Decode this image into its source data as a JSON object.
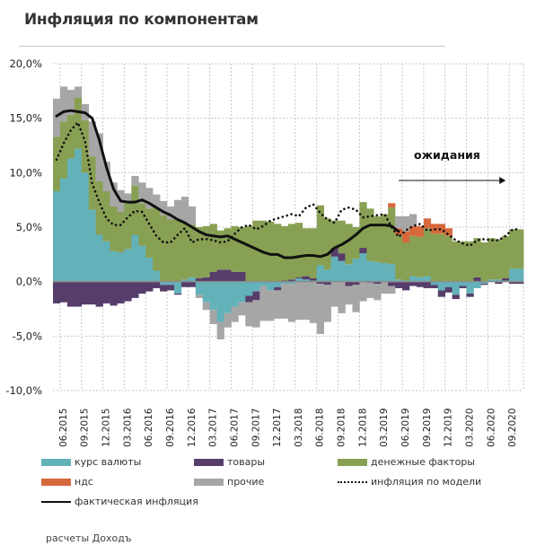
{
  "title": "Инфляция по компонентам",
  "source": "расчеты Доходъ",
  "chart_data": {
    "type": "bar",
    "stacked": true,
    "title": "Инфляция по компонентам",
    "xlabel": "",
    "ylabel": "",
    "ylim": [
      -10,
      20
    ],
    "yticks": [
      20,
      15,
      10,
      5,
      0,
      -5,
      -10
    ],
    "ytick_labels": [
      "20,0%",
      "15,0%",
      "10,0%",
      "5,0%",
      "0,0%",
      "-5,0%",
      "-10,0%"
    ],
    "grid": true,
    "legend_position": "bottom",
    "annotation": {
      "text": "ожидания",
      "arrow": "right",
      "from_month_index": 48,
      "to_month_index": 63
    },
    "xtick_labels": [
      "06.2015",
      "09.2015",
      "12.2015",
      "03.2016",
      "06.2016",
      "09.2016",
      "12.2016",
      "03.2017",
      "06.2017",
      "09.2017",
      "12.2017",
      "03.2018",
      "06.2018",
      "09.2018",
      "12.2018",
      "03.2019",
      "06.2019",
      "09.2019",
      "12.2019",
      "03.2020",
      "06.2020",
      "09.2020"
    ],
    "xtick_month_index": [
      1,
      4,
      7,
      10,
      13,
      16,
      19,
      22,
      25,
      28,
      31,
      34,
      37,
      40,
      43,
      46,
      49,
      52,
      55,
      58,
      61,
      64
    ],
    "months": [
      "05.2015",
      "06.2015",
      "07.2015",
      "08.2015",
      "09.2015",
      "10.2015",
      "11.2015",
      "12.2015",
      "01.2016",
      "02.2016",
      "03.2016",
      "04.2016",
      "05.2016",
      "06.2016",
      "07.2016",
      "08.2016",
      "09.2016",
      "10.2016",
      "11.2016",
      "12.2016",
      "01.2017",
      "02.2017",
      "03.2017",
      "04.2017",
      "05.2017",
      "06.2017",
      "07.2017",
      "08.2017",
      "09.2017",
      "10.2017",
      "11.2017",
      "12.2017",
      "01.2018",
      "02.2018",
      "03.2018",
      "04.2018",
      "05.2018",
      "06.2018",
      "07.2018",
      "08.2018",
      "09.2018",
      "10.2018",
      "11.2018",
      "12.2018",
      "01.2019",
      "02.2019",
      "03.2019",
      "04.2019",
      "05.2019",
      "06.2019",
      "07.2019",
      "08.2019",
      "09.2019",
      "10.2019",
      "11.2019",
      "12.2019",
      "01.2020",
      "02.2020",
      "03.2020",
      "04.2020",
      "05.2020",
      "06.2020",
      "07.2020",
      "08.2020",
      "09.2020",
      "10.2020"
    ],
    "series": [
      {
        "name": "курс валюты",
        "color": "#63b1b9",
        "values": [
          8.3,
          9.5,
          11.3,
          12.2,
          10.0,
          6.6,
          4.3,
          3.7,
          2.8,
          2.7,
          3.0,
          4.3,
          3.3,
          2.2,
          1.0,
          -0.3,
          -0.3,
          -1.1,
          0.2,
          0.4,
          -1.2,
          -1.9,
          -2.6,
          -3.7,
          -2.9,
          -2.3,
          -1.9,
          -1.3,
          -0.9,
          -0.4,
          -0.8,
          -0.5,
          -0.2,
          -0.2,
          0.3,
          0.2,
          0.1,
          1.5,
          1.1,
          2.3,
          1.9,
          1.6,
          2.1,
          2.6,
          1.9,
          1.8,
          1.7,
          1.6,
          0.2,
          0.1,
          0.5,
          0.4,
          0.5,
          -0.3,
          -0.8,
          -0.5,
          -1.2,
          -0.4,
          -1.1,
          -0.6,
          -0.2,
          0.2,
          0.2,
          0.1,
          1.2,
          1.2
        ]
      },
      {
        "name": "товары",
        "color": "#563d6a",
        "values": [
          -2.0,
          -1.9,
          -2.3,
          -2.3,
          -2.1,
          -2.1,
          -2.3,
          -2.0,
          -2.2,
          -2.0,
          -1.8,
          -1.5,
          -1.1,
          -0.9,
          -0.6,
          -0.6,
          -0.5,
          -0.1,
          -0.5,
          -0.5,
          0.3,
          0.4,
          0.9,
          1.1,
          1.1,
          0.9,
          0.9,
          -0.6,
          -0.8,
          0.0,
          0.0,
          -0.3,
          0.1,
          0.2,
          0.1,
          0.3,
          0.2,
          -0.2,
          -0.3,
          0.8,
          0.7,
          -0.4,
          -0.3,
          0.5,
          -0.1,
          -0.2,
          0.0,
          -0.4,
          -0.6,
          -0.8,
          -0.4,
          -0.5,
          -0.6,
          -0.3,
          -0.6,
          -0.5,
          -0.4,
          -0.2,
          -0.3,
          0.4,
          -0.1,
          0.0,
          -0.2,
          0.2,
          -0.2,
          -0.2
        ]
      },
      {
        "name": "денежные факторы",
        "color": "#88a053",
        "values": [
          5.0,
          5.2,
          4.0,
          4.7,
          4.8,
          4.9,
          4.9,
          4.6,
          4.1,
          3.7,
          4.2,
          4.5,
          3.9,
          4.5,
          5.8,
          6.1,
          5.7,
          5.7,
          5.2,
          4.8,
          4.7,
          4.7,
          4.4,
          3.6,
          3.8,
          4.2,
          4.1,
          5.1,
          5.6,
          5.6,
          5.5,
          5.3,
          5.0,
          5.1,
          5.0,
          4.4,
          4.6,
          5.5,
          4.7,
          2.5,
          3.0,
          3.7,
          2.9,
          4.2,
          4.8,
          4.2,
          4.5,
          5.2,
          4.1,
          3.5,
          3.7,
          3.7,
          4.4,
          4.4,
          4.4,
          4.2,
          3.7,
          3.7,
          3.7,
          3.6,
          3.6,
          3.8,
          3.7,
          3.9,
          3.6,
          3.6
        ]
      },
      {
        "name": "ндс",
        "color": "#d6683c",
        "values": [
          0,
          0,
          0,
          0,
          0,
          0,
          0,
          0,
          0,
          0,
          0,
          0,
          0,
          0,
          0,
          0,
          0,
          0,
          0,
          0,
          0,
          0,
          0,
          0,
          0,
          0,
          0,
          0,
          0,
          0,
          0,
          0,
          0,
          0,
          0,
          0,
          0,
          0,
          0,
          0,
          0,
          0,
          0,
          0,
          0,
          0,
          0,
          0.4,
          0.6,
          1.0,
          0.9,
          1.0,
          0.9,
          0.9,
          0.9,
          0.7,
          0,
          0,
          0,
          0,
          0,
          0,
          0,
          0,
          0,
          0
        ]
      },
      {
        "name": "прочие",
        "color": "#a6a6a6",
        "values": [
          3.5,
          3.2,
          2.3,
          1.0,
          1.5,
          3.2,
          4.4,
          2.7,
          2.2,
          2.0,
          0.9,
          0.9,
          1.9,
          1.9,
          1.2,
          1.3,
          1.2,
          1.8,
          2.4,
          1.7,
          -0.3,
          -0.7,
          -1.3,
          -1.6,
          -1.3,
          -1.4,
          -1.2,
          -2.2,
          -2.5,
          -3.2,
          -2.8,
          -2.6,
          -3.2,
          -3.5,
          -3.5,
          -3.5,
          -3.8,
          -4.6,
          -3.4,
          -2.3,
          -2.9,
          -1.7,
          -2.5,
          -1.8,
          -1.4,
          -1.5,
          -1.1,
          -0.7,
          1.1,
          1.4,
          1.1,
          0,
          0,
          0,
          0,
          0,
          0,
          0,
          0,
          0,
          0,
          0,
          0,
          0,
          0,
          0
        ]
      }
    ],
    "lines": [
      {
        "name": "инфляция по модели",
        "style": "dotted",
        "color": "#111111",
        "values": [
          11.2,
          12.7,
          13.9,
          14.6,
          12.9,
          9.0,
          7.3,
          5.8,
          5.2,
          5.2,
          5.9,
          6.5,
          6.4,
          5.3,
          4.2,
          3.6,
          3.6,
          4.3,
          4.9,
          3.6,
          3.9,
          3.9,
          3.8,
          3.6,
          3.7,
          4.4,
          5.0,
          5.2,
          4.8,
          5.1,
          5.6,
          5.8,
          6.0,
          6.2,
          6.0,
          6.8,
          7.1,
          6.3,
          5.7,
          5.4,
          6.6,
          6.8,
          6.6,
          5.9,
          6.0,
          6.1,
          6.2,
          5.0,
          4.1,
          4.7,
          5.1,
          5.3,
          4.7,
          4.8,
          4.8,
          4.3,
          3.8,
          3.5,
          3.3,
          3.8,
          3.9,
          3.8,
          3.8,
          4.2,
          4.8,
          4.8
        ]
      },
      {
        "name": "фактическая инфляция",
        "style": "solid",
        "color": "#111111",
        "values": [
          15.2,
          15.6,
          15.7,
          15.6,
          15.5,
          15.0,
          13.0,
          10.5,
          8.5,
          7.4,
          7.3,
          7.3,
          7.5,
          7.2,
          6.8,
          6.4,
          6.1,
          5.7,
          5.4,
          5.0,
          4.6,
          4.3,
          4.2,
          4.1,
          4.2,
          3.9,
          3.6,
          3.3,
          3.0,
          2.7,
          2.5,
          2.5,
          2.2,
          2.2,
          2.3,
          2.4,
          2.4,
          2.3,
          2.5,
          3.1,
          3.4,
          3.8,
          4.3,
          4.9,
          5.2,
          5.2,
          5.2,
          5.1,
          4.6
        ]
      }
    ],
    "legend": [
      {
        "label": "курс валюты",
        "kind": "bar",
        "color": "#63b1b9"
      },
      {
        "label": "товары",
        "kind": "bar",
        "color": "#563d6a"
      },
      {
        "label": "денежные факторы",
        "kind": "bar",
        "color": "#88a053"
      },
      {
        "label": "ндс",
        "kind": "bar",
        "color": "#d6683c"
      },
      {
        "label": "прочие",
        "kind": "bar",
        "color": "#a6a6a6"
      },
      {
        "label": "инфляция по модели",
        "kind": "dotted-line",
        "color": "#111111"
      },
      {
        "label": "фактическая инфляция",
        "kind": "solid-line",
        "color": "#111111"
      }
    ]
  }
}
